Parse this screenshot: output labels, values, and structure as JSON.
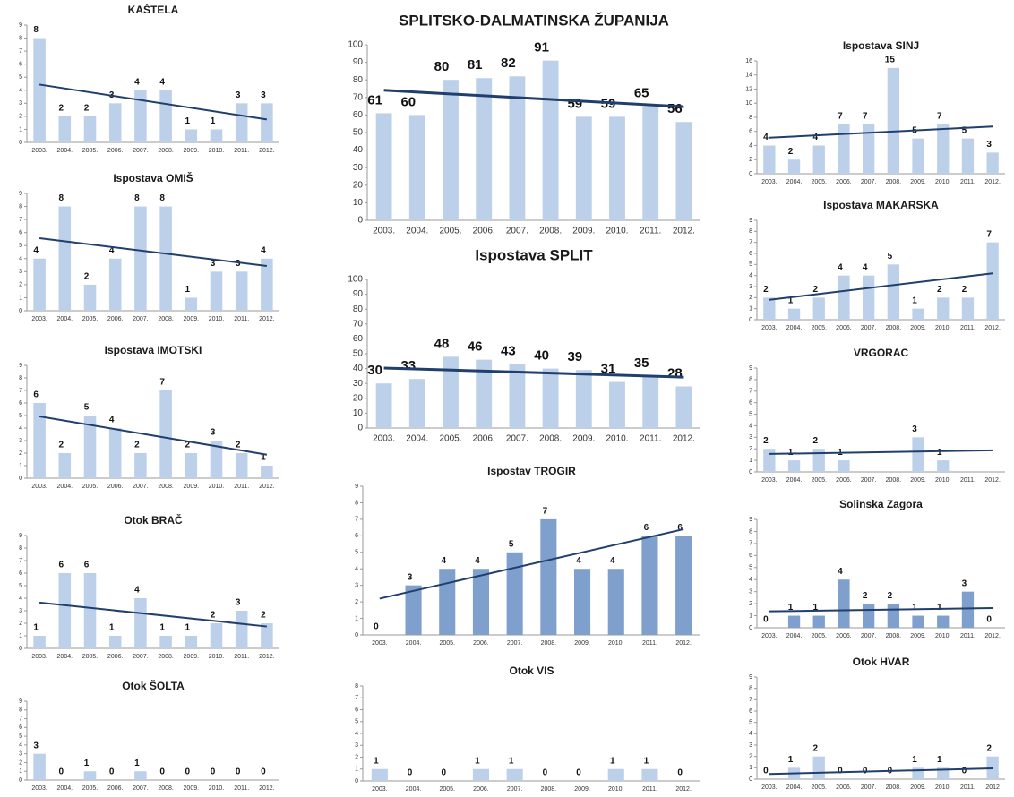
{
  "chart_data": [
    {
      "type": "bar",
      "title": "KAŠTELA",
      "categories": [
        "2003.",
        "2004.",
        "2005.",
        "2006.",
        "2007.",
        "2008.",
        "2009.",
        "2010.",
        "2011.",
        "2012."
      ],
      "values": [
        8,
        2,
        2,
        3,
        4,
        4,
        1,
        1,
        3,
        3
      ],
      "ylim": [
        0,
        9
      ],
      "yticks": [
        0,
        1,
        2,
        3,
        4,
        5,
        6,
        7,
        8,
        9
      ],
      "color": "#bcd0ea",
      "trendline": true,
      "trend_color": "#203f6d"
    },
    {
      "type": "bar",
      "title": "Ispostava OMIŠ",
      "categories": [
        "2003.",
        "2004.",
        "2005.",
        "2006.",
        "2007.",
        "2008.",
        "2009.",
        "2010.",
        "2011.",
        "2012."
      ],
      "values": [
        4,
        8,
        2,
        4,
        8,
        8,
        1,
        3,
        3,
        4
      ],
      "ylim": [
        0,
        9
      ],
      "yticks": [
        0,
        1,
        2,
        3,
        4,
        5,
        6,
        7,
        8,
        9
      ],
      "color": "#bcd0ea",
      "trendline": true,
      "trend_color": "#203f6d"
    },
    {
      "type": "bar",
      "title": "Ispostava IMOTSKI",
      "categories": [
        "2003.",
        "2004.",
        "2005.",
        "2006.",
        "2007.",
        "2008.",
        "2009.",
        "2010.",
        "2011.",
        "2012."
      ],
      "values": [
        6,
        2,
        5,
        4,
        2,
        7,
        2,
        3,
        2,
        1
      ],
      "ylim": [
        0,
        9
      ],
      "yticks": [
        0,
        1,
        2,
        3,
        4,
        5,
        6,
        7,
        8,
        9
      ],
      "color": "#bcd0ea",
      "trendline": true,
      "trend_color": "#203f6d"
    },
    {
      "type": "bar",
      "title": "Otok BRAČ",
      "categories": [
        "2003.",
        "2004.",
        "2005.",
        "2006.",
        "2007.",
        "2008.",
        "2009.",
        "2010.",
        "2011.",
        "2012."
      ],
      "values": [
        1,
        6,
        6,
        1,
        4,
        1,
        1,
        2,
        3,
        2
      ],
      "ylim": [
        0,
        9
      ],
      "yticks": [
        0,
        1,
        2,
        3,
        4,
        5,
        6,
        7,
        8,
        9
      ],
      "color": "#bcd0ea",
      "trendline": true,
      "trend_color": "#203f6d"
    },
    {
      "type": "bar",
      "title": "Otok ŠOLTA",
      "categories": [
        "2003.",
        "2004.",
        "2005.",
        "2006.",
        "2007.",
        "2008.",
        "2009.",
        "2010.",
        "2011.",
        "2012."
      ],
      "values": [
        3,
        0,
        1,
        0,
        1,
        0,
        0,
        0,
        0,
        0
      ],
      "ylim": [
        0,
        9
      ],
      "yticks": [
        0,
        1,
        2,
        3,
        4,
        5,
        6,
        7,
        8,
        9
      ],
      "color": "#bcd0ea",
      "trendline": false,
      "trend_color": "#203f6d"
    },
    {
      "type": "bar",
      "title": "SPLITSKO-DALMATINSKA ŽUPANIJA",
      "categories": [
        "2003.",
        "2004.",
        "2005.",
        "2006.",
        "2007.",
        "2008.",
        "2009.",
        "2010.",
        "2011.",
        "2012."
      ],
      "values": [
        61,
        60,
        80,
        81,
        82,
        91,
        59,
        59,
        65,
        56
      ],
      "ylim": [
        0,
        100
      ],
      "yticks": [
        0,
        10,
        20,
        30,
        40,
        50,
        60,
        70,
        80,
        90,
        100
      ],
      "color": "#bcd0ea",
      "trendline": true,
      "trend_color": "#203f6d"
    },
    {
      "type": "bar",
      "title": "Ispostava SPLIT",
      "categories": [
        "2003.",
        "2004.",
        "2005.",
        "2006.",
        "2007.",
        "2008.",
        "2009.",
        "2010.",
        "2011.",
        "2012."
      ],
      "values": [
        30,
        33,
        48,
        46,
        43,
        40,
        39,
        31,
        35,
        28
      ],
      "ylim": [
        0,
        100
      ],
      "yticks": [
        0,
        10,
        20,
        30,
        40,
        50,
        60,
        70,
        80,
        90,
        100
      ],
      "color": "#bcd0ea",
      "trendline": true,
      "trend_color": "#203f6d"
    },
    {
      "type": "bar",
      "title": "Ispostav TROGIR",
      "categories": [
        "2003.",
        "2004.",
        "2005.",
        "2006.",
        "2007.",
        "2008.",
        "2009.",
        "2010.",
        "2011.",
        "2012."
      ],
      "values": [
        0,
        3,
        4,
        4,
        5,
        7,
        4,
        4,
        6,
        6
      ],
      "ylim": [
        0,
        9
      ],
      "yticks": [
        0,
        1,
        2,
        3,
        4,
        5,
        6,
        7,
        8,
        9
      ],
      "color": "#7f9fcc",
      "trendline": true,
      "trend_color": "#203f6d"
    },
    {
      "type": "bar",
      "title": "Otok VIS",
      "categories": [
        "2003.",
        "2004.",
        "2005.",
        "2006.",
        "2007.",
        "2008.",
        "2009.",
        "2010.",
        "2011.",
        "2012."
      ],
      "values": [
        1,
        0,
        0,
        1,
        1,
        0,
        0,
        1,
        1,
        0
      ],
      "ylim": [
        0,
        8
      ],
      "yticks": [
        0,
        1,
        2,
        3,
        4,
        5,
        6,
        7,
        8
      ],
      "color": "#bcd0ea",
      "trendline": false,
      "trend_color": "#203f6d"
    },
    {
      "type": "bar",
      "title": "Ispostava SINJ",
      "categories": [
        "2003.",
        "2004.",
        "2005.",
        "2006.",
        "2007.",
        "2008.",
        "2009.",
        "2010.",
        "2011.",
        "2012."
      ],
      "values": [
        4,
        2,
        4,
        7,
        7,
        15,
        5,
        7,
        5,
        3
      ],
      "ylim": [
        0,
        16
      ],
      "yticks": [
        0,
        2,
        4,
        6,
        8,
        10,
        12,
        14,
        16
      ],
      "color": "#bcd0ea",
      "trendline": true,
      "trend_color": "#203f6d"
    },
    {
      "type": "bar",
      "title": "Ispostava MAKARSKA",
      "categories": [
        "2003.",
        "2004.",
        "2005.",
        "2006.",
        "2007.",
        "2008.",
        "2009.",
        "2010.",
        "2011.",
        "2012."
      ],
      "values": [
        2,
        1,
        2,
        4,
        4,
        5,
        1,
        2,
        2,
        7
      ],
      "ylim": [
        0,
        9
      ],
      "yticks": [
        0,
        1,
        2,
        3,
        4,
        5,
        6,
        7,
        8,
        9
      ],
      "color": "#bcd0ea",
      "trendline": true,
      "trend_color": "#203f6d"
    },
    {
      "type": "bar",
      "title": "VRGORAC",
      "categories": [
        "2003.",
        "2004.",
        "2005.",
        "2006.",
        "2007.",
        "2008.",
        "2009.",
        "2010.",
        "2011.",
        "2012."
      ],
      "values": [
        2,
        1,
        2,
        1,
        null,
        null,
        3,
        1,
        null,
        null
      ],
      "ylim": [
        0,
        9
      ],
      "yticks": [
        0,
        1,
        2,
        3,
        4,
        5,
        6,
        7,
        8,
        9
      ],
      "color": "#bcd0ea",
      "trendline": true,
      "trend_color": "#203f6d"
    },
    {
      "type": "bar",
      "title": "Solinska Zagora",
      "categories": [
        "2003.",
        "2004.",
        "2005.",
        "2006.",
        "2007.",
        "2008.",
        "2009.",
        "2010.",
        "2011.",
        "2012."
      ],
      "values": [
        0,
        1,
        1,
        4,
        2,
        2,
        1,
        1,
        3,
        0
      ],
      "ylim": [
        0,
        9
      ],
      "yticks": [
        0,
        1,
        2,
        3,
        4,
        5,
        6,
        7,
        8,
        9
      ],
      "color": "#7f9fcc",
      "trendline": true,
      "trend_color": "#203f6d"
    },
    {
      "type": "bar",
      "title": "Otok HVAR",
      "categories": [
        "2003.",
        "2004.",
        "2005.",
        "2006.",
        "2007.",
        "2008.",
        "2009.",
        "2010.",
        "2011.",
        "2012"
      ],
      "values": [
        0,
        1,
        2,
        0,
        0,
        0,
        1,
        1,
        0,
        2
      ],
      "ylim": [
        0,
        9
      ],
      "yticks": [
        0,
        1,
        2,
        3,
        4,
        5,
        6,
        7,
        8,
        9
      ],
      "color": "#bcd0ea",
      "trendline": true,
      "trend_color": "#203f6d"
    }
  ]
}
